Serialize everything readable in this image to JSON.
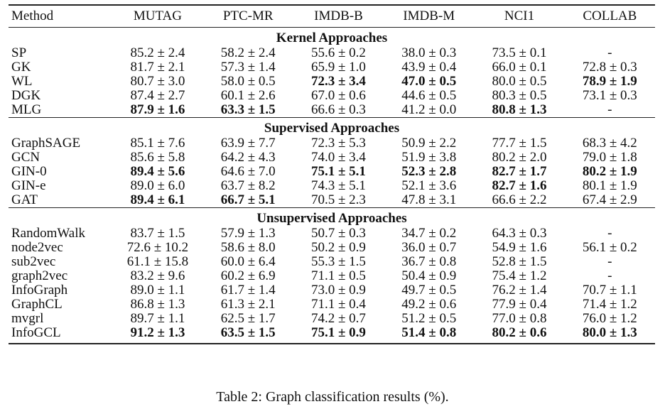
{
  "table": {
    "columns": [
      "Method",
      "MUTAG",
      "PTC-MR",
      "IMDB-B",
      "IMDB-M",
      "NCI1",
      "COLLAB"
    ],
    "groups": [
      {
        "title": "Kernel Approaches",
        "rows": [
          {
            "method": "SP",
            "cells": [
              {
                "text": "85.2 ± 2.4",
                "bold": false
              },
              {
                "text": "58.2 ± 2.4",
                "bold": false
              },
              {
                "text": "55.6 ± 0.2",
                "bold": false
              },
              {
                "text": "38.0 ± 0.3",
                "bold": false
              },
              {
                "text": "73.5 ± 0.1",
                "bold": false
              },
              {
                "text": "-",
                "bold": false
              }
            ]
          },
          {
            "method": "GK",
            "cells": [
              {
                "text": "81.7 ± 2.1",
                "bold": false
              },
              {
                "text": "57.3 ± 1.4",
                "bold": false
              },
              {
                "text": "65.9 ± 1.0",
                "bold": false
              },
              {
                "text": "43.9 ± 0.4",
                "bold": false
              },
              {
                "text": "66.0 ± 0.1",
                "bold": false
              },
              {
                "text": "72.8 ± 0.3",
                "bold": false
              }
            ]
          },
          {
            "method": "WL",
            "cells": [
              {
                "text": "80.7 ± 3.0",
                "bold": false
              },
              {
                "text": "58.0 ± 0.5",
                "bold": false
              },
              {
                "text": "72.3 ± 3.4",
                "bold": true
              },
              {
                "text": "47.0 ± 0.5",
                "bold": true
              },
              {
                "text": "80.0 ± 0.5",
                "bold": false
              },
              {
                "text": "78.9 ± 1.9",
                "bold": true
              }
            ]
          },
          {
            "method": "DGK",
            "cells": [
              {
                "text": "87.4 ± 2.7",
                "bold": false
              },
              {
                "text": "60.1 ± 2.6",
                "bold": false
              },
              {
                "text": "67.0 ± 0.6",
                "bold": false
              },
              {
                "text": "44.6 ± 0.5",
                "bold": false
              },
              {
                "text": "80.3 ± 0.5",
                "bold": false
              },
              {
                "text": "73.1 ± 0.3",
                "bold": false
              }
            ]
          },
          {
            "method": "MLG",
            "cells": [
              {
                "text": "87.9 ± 1.6",
                "bold": true
              },
              {
                "text": "63.3 ± 1.5",
                "bold": true
              },
              {
                "text": "66.6 ± 0.3",
                "bold": false
              },
              {
                "text": "41.2 ± 0.0",
                "bold": false
              },
              {
                "text": "80.8 ± 1.3",
                "bold": true
              },
              {
                "text": "-",
                "bold": false
              }
            ]
          }
        ]
      },
      {
        "title": "Supervised Approaches",
        "rows": [
          {
            "method": "GraphSAGE",
            "cells": [
              {
                "text": "85.1 ± 7.6",
                "bold": false
              },
              {
                "text": "63.9 ± 7.7",
                "bold": false
              },
              {
                "text": "72.3 ± 5.3",
                "bold": false
              },
              {
                "text": "50.9 ± 2.2",
                "bold": false
              },
              {
                "text": "77.7 ± 1.5",
                "bold": false
              },
              {
                "text": "68.3 ± 4.2",
                "bold": false
              }
            ]
          },
          {
            "method": "GCN",
            "cells": [
              {
                "text": "85.6 ± 5.8",
                "bold": false
              },
              {
                "text": "64.2 ± 4.3",
                "bold": false
              },
              {
                "text": "74.0 ± 3.4",
                "bold": false
              },
              {
                "text": "51.9 ± 3.8",
                "bold": false
              },
              {
                "text": "80.2 ± 2.0",
                "bold": false
              },
              {
                "text": "79.0 ± 1.8",
                "bold": false
              }
            ]
          },
          {
            "method": "GIN-0",
            "cells": [
              {
                "text": "89.4 ± 5.6",
                "bold": true
              },
              {
                "text": "64.6 ± 7.0",
                "bold": false
              },
              {
                "text": "75.1 ± 5.1",
                "bold": true
              },
              {
                "text": "52.3 ± 2.8",
                "bold": true
              },
              {
                "text": "82.7 ± 1.7",
                "bold": true
              },
              {
                "text": "80.2 ± 1.9",
                "bold": true
              }
            ]
          },
          {
            "method": "GIN-e",
            "cells": [
              {
                "text": "89.0 ± 6.0",
                "bold": false
              },
              {
                "text": "63.7 ± 8.2",
                "bold": false
              },
              {
                "text": "74.3 ± 5.1",
                "bold": false
              },
              {
                "text": "52.1 ± 3.6",
                "bold": false
              },
              {
                "text": "82.7 ± 1.6",
                "bold": true
              },
              {
                "text": "80.1 ± 1.9",
                "bold": false
              }
            ]
          },
          {
            "method": "GAT",
            "cells": [
              {
                "text": "89.4 ± 6.1",
                "bold": true
              },
              {
                "text": "66.7 ± 5.1",
                "bold": true
              },
              {
                "text": "70.5 ± 2.3",
                "bold": false
              },
              {
                "text": "47.8 ± 3.1",
                "bold": false
              },
              {
                "text": "66.6 ± 2.2",
                "bold": false
              },
              {
                "text": "67.4 ± 2.9",
                "bold": false
              }
            ]
          }
        ]
      },
      {
        "title": "Unsupervised Approaches",
        "rows": [
          {
            "method": "RandomWalk",
            "cells": [
              {
                "text": "83.7 ± 1.5",
                "bold": false
              },
              {
                "text": "57.9 ± 1.3",
                "bold": false
              },
              {
                "text": "50.7 ± 0.3",
                "bold": false
              },
              {
                "text": "34.7 ± 0.2",
                "bold": false
              },
              {
                "text": "64.3 ± 0.3",
                "bold": false
              },
              {
                "text": "-",
                "bold": false
              }
            ]
          },
          {
            "method": "node2vec",
            "cells": [
              {
                "text": "72.6 ± 10.2",
                "bold": false
              },
              {
                "text": "58.6 ± 8.0",
                "bold": false
              },
              {
                "text": "50.2 ± 0.9",
                "bold": false
              },
              {
                "text": "36.0 ± 0.7",
                "bold": false
              },
              {
                "text": "54.9 ± 1.6",
                "bold": false
              },
              {
                "text": "56.1 ± 0.2",
                "bold": false
              }
            ]
          },
          {
            "method": "sub2vec",
            "cells": [
              {
                "text": "61.1 ± 15.8",
                "bold": false
              },
              {
                "text": "60.0 ± 6.4",
                "bold": false
              },
              {
                "text": "55.3 ± 1.5",
                "bold": false
              },
              {
                "text": "36.7 ± 0.8",
                "bold": false
              },
              {
                "text": "52.8 ± 1.5",
                "bold": false
              },
              {
                "text": "-",
                "bold": false
              }
            ]
          },
          {
            "method": "graph2vec",
            "cells": [
              {
                "text": "83.2 ± 9.6",
                "bold": false
              },
              {
                "text": "60.2 ± 6.9",
                "bold": false
              },
              {
                "text": "71.1 ± 0.5",
                "bold": false
              },
              {
                "text": "50.4 ± 0.9",
                "bold": false
              },
              {
                "text": "75.4 ± 1.2",
                "bold": false
              },
              {
                "text": "-",
                "bold": false
              }
            ]
          },
          {
            "method": "InfoGraph",
            "cells": [
              {
                "text": "89.0 ± 1.1",
                "bold": false
              },
              {
                "text": "61.7 ± 1.4",
                "bold": false
              },
              {
                "text": "73.0 ± 0.9",
                "bold": false
              },
              {
                "text": "49.7 ± 0.5",
                "bold": false
              },
              {
                "text": "76.2 ± 1.4",
                "bold": false
              },
              {
                "text": "70.7 ± 1.1",
                "bold": false
              }
            ]
          },
          {
            "method": "GraphCL",
            "cells": [
              {
                "text": "86.8 ± 1.3",
                "bold": false
              },
              {
                "text": "61.3 ± 2.1",
                "bold": false
              },
              {
                "text": "71.1 ± 0.4",
                "bold": false
              },
              {
                "text": "49.2 ± 0.6",
                "bold": false
              },
              {
                "text": "77.9 ± 0.4",
                "bold": false
              },
              {
                "text": "71.4 ± 1.2",
                "bold": false
              }
            ]
          },
          {
            "method": "mvgrl",
            "cells": [
              {
                "text": "89.7 ± 1.1",
                "bold": false
              },
              {
                "text": "62.5 ± 1.7",
                "bold": false
              },
              {
                "text": "74.2 ± 0.7",
                "bold": false
              },
              {
                "text": "51.2 ± 0.5",
                "bold": false
              },
              {
                "text": "77.0 ± 0.8",
                "bold": false
              },
              {
                "text": "76.0 ± 1.2",
                "bold": false
              }
            ]
          },
          {
            "method": "InfoGCL",
            "cells": [
              {
                "text": "91.2 ± 1.3",
                "bold": true
              },
              {
                "text": "63.5 ± 1.5",
                "bold": true
              },
              {
                "text": "75.1 ± 0.9",
                "bold": true
              },
              {
                "text": "51.4 ± 0.8",
                "bold": true
              },
              {
                "text": "80.2 ± 0.6",
                "bold": true
              },
              {
                "text": "80.0 ± 1.3",
                "bold": true
              }
            ]
          }
        ]
      }
    ]
  },
  "caption": "Table 2: Graph classification results (%)."
}
